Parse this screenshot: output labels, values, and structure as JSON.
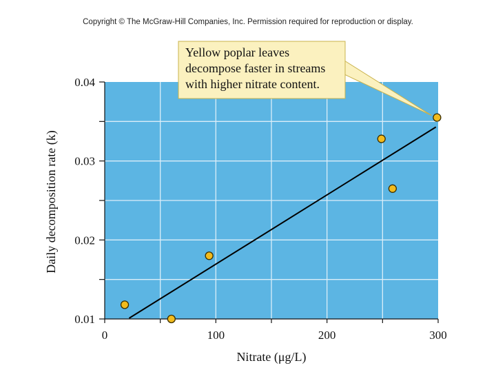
{
  "header": {
    "copyright": "Copyright © The McGraw-Hill Companies, Inc. Permission required for reproduction or display."
  },
  "colors": {
    "plot_bg": "#5cb5e3",
    "grid": "#dbeef9",
    "point_fill": "#f2bb1d",
    "point_stroke": "#3a2e00",
    "line": "#000000",
    "callout_bg": "#fbf1bf",
    "callout_border": "#c9b24b"
  },
  "chart_data": {
    "type": "scatter",
    "xlabel": "Nitrate (μg/L)",
    "ylabel": "Daily decomposition rate (k)",
    "xlim": [
      0,
      300
    ],
    "ylim": [
      0.01,
      0.04
    ],
    "x_ticks": [
      0,
      100,
      200,
      300
    ],
    "x_tick_labels": [
      "0",
      "100",
      "200",
      "300"
    ],
    "y_ticks": [
      0.01,
      0.02,
      0.03,
      0.04
    ],
    "y_tick_labels": [
      "0.01",
      "0.02",
      "0.03",
      "0.04"
    ],
    "x_minor_step": 50,
    "y_minor_step": 0.005,
    "grid": true,
    "points": [
      {
        "x": 18,
        "y": 0.0118
      },
      {
        "x": 60,
        "y": 0.01
      },
      {
        "x": 94,
        "y": 0.018
      },
      {
        "x": 249,
        "y": 0.0328
      },
      {
        "x": 259,
        "y": 0.0265
      },
      {
        "x": 299,
        "y": 0.0355
      }
    ],
    "trendline": {
      "x": [
        22,
        298
      ],
      "y": [
        0.0101,
        0.0343
      ]
    },
    "annotation": {
      "lines": [
        "Yellow poplar leaves",
        "decompose faster in streams",
        "with higher nitrate content."
      ],
      "points_to": {
        "x": 299,
        "y": 0.0355
      }
    }
  }
}
